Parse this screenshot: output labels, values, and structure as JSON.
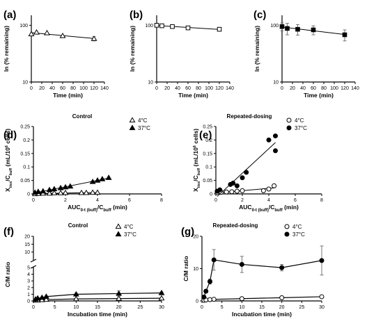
{
  "chart_data": [
    {
      "id": "a",
      "panel_label": "(a)",
      "type": "scatter",
      "title": "",
      "xlabel": "Time (min)",
      "ylabel": "ln (% remaining)",
      "yscale": "log",
      "xlim": [
        0,
        140
      ],
      "ylim": [
        10,
        150
      ],
      "xticks": [
        0,
        20,
        40,
        60,
        80,
        100,
        120,
        140
      ],
      "yticks": [
        10,
        100
      ],
      "series": [
        {
          "name": "",
          "marker": "triangle-open",
          "fit_line": true,
          "x": [
            0,
            10,
            30,
            60,
            120
          ],
          "y": [
            70,
            75,
            73,
            65,
            58
          ],
          "err": [
            0,
            0,
            0,
            0,
            5
          ]
        }
      ]
    },
    {
      "id": "b",
      "panel_label": "(b)",
      "type": "scatter",
      "title": "",
      "xlabel": "Time (min)",
      "ylabel": "ln (% remaining)",
      "yscale": "log",
      "xlim": [
        0,
        140
      ],
      "ylim": [
        10,
        150
      ],
      "xticks": [
        0,
        20,
        40,
        60,
        80,
        100,
        120,
        140
      ],
      "yticks": [
        10,
        100
      ],
      "series": [
        {
          "name": "",
          "marker": "square-open",
          "fit_line": true,
          "x": [
            0,
            10,
            30,
            60,
            120
          ],
          "y": [
            100,
            98,
            95,
            90,
            85
          ],
          "err": [
            0,
            4,
            4,
            5,
            6
          ]
        }
      ]
    },
    {
      "id": "c",
      "panel_label": "(c)",
      "type": "scatter",
      "title": "",
      "xlabel": "Time (min)",
      "ylabel": "ln (% remaining)",
      "yscale": "log",
      "xlim": [
        0,
        140
      ],
      "ylim": [
        10,
        150
      ],
      "xticks": [
        0,
        20,
        40,
        60,
        80,
        100,
        120,
        140
      ],
      "yticks": [
        10,
        100
      ],
      "series": [
        {
          "name": "",
          "marker": "square-filled",
          "fit_line": true,
          "x": [
            0,
            10,
            30,
            60,
            120
          ],
          "y": [
            95,
            88,
            85,
            83,
            68
          ],
          "err": [
            15,
            20,
            18,
            15,
            15
          ]
        }
      ]
    },
    {
      "id": "d",
      "panel_label": "(d)",
      "type": "scatter",
      "title": "Control",
      "xlabel": "AUC0-t (buff)/Cbuff (min)",
      "ylabel": "Xtiss/Cbuff (mL/10⁶ cells)",
      "xlim": [
        0,
        8
      ],
      "ylim": [
        0,
        0.25
      ],
      "xticks": [
        0,
        2,
        4,
        6,
        8
      ],
      "yticks": [
        0,
        0.05,
        0.1,
        0.15,
        0.2,
        0.25
      ],
      "legend_position": "top-right",
      "series": [
        {
          "name": "4°C",
          "marker": "triangle-open",
          "fit_line": true,
          "x": [
            0.1,
            0.3,
            0.6,
            1.0,
            1.3,
            1.7,
            2.0,
            3.0,
            3.3,
            3.7,
            4.0
          ],
          "y": [
            0.0,
            0.001,
            0.002,
            0.002,
            0.003,
            0.003,
            0.004,
            0.004,
            0.004,
            0.005,
            0.005
          ]
        },
        {
          "name": "37°C",
          "marker": "triangle-filled",
          "fit_line": true,
          "x": [
            0.1,
            0.3,
            0.6,
            1.0,
            1.3,
            1.7,
            2.0,
            2.3,
            3.7,
            4.0,
            4.3,
            4.7
          ],
          "y": [
            0.005,
            0.008,
            0.01,
            0.015,
            0.018,
            0.022,
            0.025,
            0.028,
            0.045,
            0.05,
            0.055,
            0.06
          ]
        }
      ]
    },
    {
      "id": "e",
      "panel_label": "(e)",
      "type": "scatter",
      "title": "Repeated-dosing",
      "xlabel": "AUC0-t (buff)/Cbuff (min)",
      "ylabel": "Xtiss/Cbuff (mL/10⁶ cells)",
      "xlim": [
        0,
        8
      ],
      "ylim": [
        0,
        0.25
      ],
      "xticks": [
        0,
        2,
        4,
        6,
        8
      ],
      "yticks": [
        0,
        0.05,
        0.1,
        0.15,
        0.2,
        0.25
      ],
      "legend_position": "top-right",
      "series": [
        {
          "name": "4°C",
          "marker": "circle-open",
          "fit_line": true,
          "x": [
            0.1,
            0.4,
            0.8,
            1.2,
            1.6,
            2.0,
            3.6,
            4.0,
            4.4
          ],
          "y": [
            0.005,
            0.006,
            0.007,
            0.008,
            0.01,
            0.012,
            0.012,
            0.018,
            0.03
          ]
        },
        {
          "name": "37°C",
          "marker": "circle-filled",
          "fit_line": true,
          "x": [
            0.1,
            0.3,
            1.1,
            1.3,
            1.6,
            2.0,
            2.3,
            4.0,
            4.5,
            4.5
          ],
          "y": [
            0.01,
            0.015,
            0.035,
            0.04,
            0.03,
            0.06,
            0.08,
            0.2,
            0.215,
            0.16
          ]
        }
      ]
    },
    {
      "id": "f",
      "panel_label": "(f)",
      "type": "line",
      "title": "Control",
      "xlabel": "Incubation time (min)",
      "ylabel": "C/M ratio",
      "xlim": [
        0,
        30
      ],
      "ylim": [
        0,
        20
      ],
      "axis_break": true,
      "xticks": [
        0,
        5,
        10,
        15,
        20,
        25,
        30
      ],
      "yticks": [
        0,
        1,
        2,
        3,
        4,
        5,
        10,
        15,
        20
      ],
      "legend_position": "top-right",
      "series": [
        {
          "name": "4°C",
          "marker": "triangle-open",
          "x": [
            0.5,
            1,
            2,
            3,
            10,
            20,
            30
          ],
          "y": [
            0.1,
            0.1,
            0.15,
            0.2,
            0.3,
            0.35,
            0.4
          ],
          "err": [
            0,
            0,
            0,
            0,
            0.1,
            0.1,
            0.1
          ]
        },
        {
          "name": "37°C",
          "marker": "triangle-filled",
          "x": [
            0.5,
            1,
            2,
            3,
            10,
            20,
            30
          ],
          "y": [
            0.25,
            0.4,
            0.5,
            0.65,
            1.0,
            1.1,
            1.2
          ],
          "err": [
            0,
            0,
            0,
            0.1,
            0.15,
            0.4,
            0.15
          ]
        }
      ]
    },
    {
      "id": "g",
      "panel_label": "(g)",
      "type": "line",
      "title": "Repeated-dosing",
      "xlabel": "Incubation time (min)",
      "ylabel": "C/M ratio",
      "xlim": [
        0,
        30
      ],
      "ylim": [
        0,
        20
      ],
      "xticks": [
        0,
        5,
        10,
        15,
        20,
        25,
        30
      ],
      "yticks": [
        0,
        10,
        20
      ],
      "legend_position": "top-right",
      "series": [
        {
          "name": "4°C",
          "marker": "circle-open",
          "x": [
            0.5,
            1,
            2,
            3,
            10,
            20,
            30
          ],
          "y": [
            0.2,
            0.3,
            0.4,
            0.5,
            0.7,
            1.0,
            1.3
          ],
          "err": [
            0,
            0,
            0,
            0,
            0,
            0,
            0
          ]
        },
        {
          "name": "37°C",
          "marker": "circle-filled",
          "x": [
            0.5,
            1,
            2,
            3,
            10,
            20,
            30
          ],
          "y": [
            1.2,
            3.0,
            6.0,
            12.7,
            11.3,
            10.3,
            12.5
          ],
          "err": [
            0.5,
            0.5,
            0.8,
            3.2,
            2.5,
            1.0,
            4.5
          ]
        }
      ]
    }
  ]
}
